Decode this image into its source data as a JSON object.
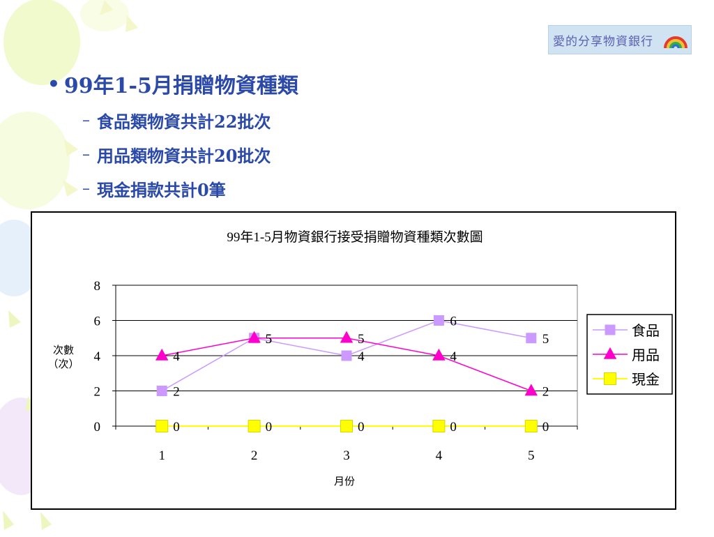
{
  "logo": {
    "text": "愛的分享物資銀行",
    "icon": "rainbow-umbrella-icon"
  },
  "bullets": {
    "main": "99年1-5月捐贈物資種類",
    "dash": "–",
    "items": [
      {
        "label": "食品類物資共計22批次"
      },
      {
        "label": "用品類物資共計20批次"
      },
      {
        "label": "現金捐款共計0筆"
      }
    ]
  },
  "colors": {
    "accent_text": "#2a49a8",
    "food": "#cc99ff",
    "goods": "#ff00cc",
    "cash": "#ffff00"
  },
  "chart_data": {
    "type": "line",
    "title": "99年1-5月物資銀行接受捐贈物資種類次數圖",
    "xlabel": "月份",
    "ylabel": "次數（次）",
    "categories": [
      "1",
      "2",
      "3",
      "4",
      "5"
    ],
    "ylim": [
      0,
      8
    ],
    "yticks": [
      0,
      2,
      4,
      6,
      8
    ],
    "grid": true,
    "legend_position": "right",
    "series": [
      {
        "name": "食品",
        "values": [
          2,
          5,
          4,
          6,
          5
        ],
        "color": "#cc99ff",
        "marker": "square"
      },
      {
        "name": "用品",
        "values": [
          4,
          5,
          5,
          4,
          2
        ],
        "color": "#ff00cc",
        "marker": "triangle"
      },
      {
        "name": "現金",
        "values": [
          0,
          0,
          0,
          0,
          0
        ],
        "color": "#ffff00",
        "marker": "square"
      }
    ]
  }
}
